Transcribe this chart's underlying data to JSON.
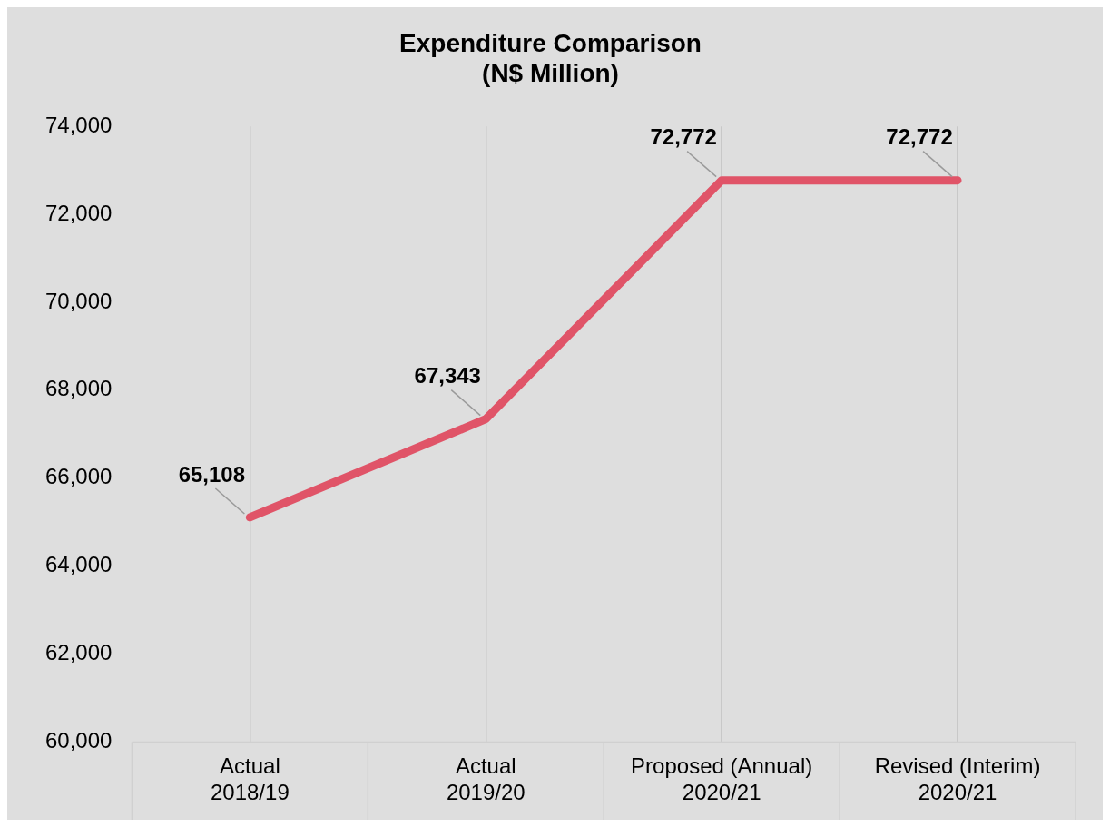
{
  "chart_data": {
    "type": "line",
    "title": "Expenditure Comparison\n(N$ Million)",
    "categories": [
      "Actual\n2018/19",
      "Actual\n2019/20",
      "Proposed (Annual)\n2020/21",
      "Revised (Interim)\n2020/21"
    ],
    "series": [
      {
        "color": "#e05468",
        "values": [
          65108,
          67343,
          72772,
          72772
        ],
        "value_labels": [
          "65,108",
          "67,343",
          "72,772",
          "72,772"
        ]
      }
    ],
    "ylim": [
      60000,
      74000
    ],
    "yticks": [
      {
        "value": 60000,
        "label": "60,000"
      },
      {
        "value": 62000,
        "label": "62,000"
      },
      {
        "value": 64000,
        "label": "64,000"
      },
      {
        "value": 66000,
        "label": "66,000"
      },
      {
        "value": 68000,
        "label": "68,000"
      },
      {
        "value": 70000,
        "label": "70,000"
      },
      {
        "value": 72000,
        "label": "72,000"
      },
      {
        "value": 74000,
        "label": "74,000"
      }
    ],
    "grid": "x",
    "legend": false,
    "marker": "none",
    "line_style": "solid"
  }
}
